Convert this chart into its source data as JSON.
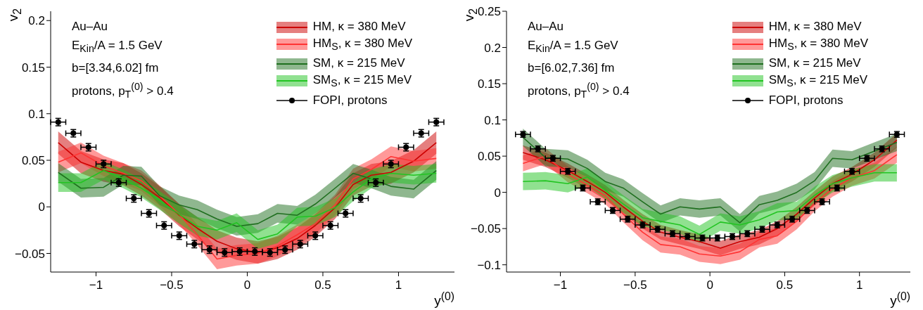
{
  "chart_data": [
    {
      "type": "line",
      "xlabel": "y$^{(0)}$",
      "ylabel": "v$_{2}$",
      "xlim": [
        -1.3,
        1.37
      ],
      "xticks": [
        -1,
        -0.5,
        0,
        0.5,
        1
      ],
      "ylim": [
        -0.07,
        0.21
      ],
      "yticks": [
        -0.05,
        0,
        0.05,
        0.1,
        0.15,
        0.2
      ],
      "legend": "top right",
      "line_style": "solid",
      "annotations": [
        "Au–Au",
        "E$_{Kin}$/A = 1.5 GeV",
        "b=[3.34,6.02] fm",
        "protons, p$_{T}$$^{(0)}$ > 0.4"
      ],
      "x": [
        -1.25,
        -1.1,
        -0.95,
        -0.82,
        -0.7,
        -0.58,
        -0.45,
        -0.33,
        -0.2,
        -0.07,
        0.07,
        0.2,
        0.33,
        0.45,
        0.58,
        0.7,
        0.82,
        0.95,
        1.1,
        1.25
      ],
      "series": [
        {
          "name": "HM, κ = 380 MeV",
          "color": "#cc0000",
          "values": [
            0.069,
            0.048,
            0.039,
            0.035,
            0.024,
            0.01,
            -0.009,
            -0.023,
            -0.037,
            -0.045,
            -0.049,
            -0.044,
            -0.034,
            -0.02,
            -0.001,
            0.024,
            0.034,
            0.037,
            0.049,
            0.069
          ],
          "lower": [
            0.057,
            0.036,
            0.027,
            0.023,
            0.012,
            -0.002,
            -0.021,
            -0.035,
            -0.049,
            -0.057,
            -0.061,
            -0.056,
            -0.046,
            -0.032,
            -0.013,
            0.012,
            0.022,
            0.025,
            0.037,
            0.057
          ],
          "upper": [
            0.081,
            0.06,
            0.051,
            0.047,
            0.036,
            0.022,
            0.003,
            -0.011,
            -0.025,
            -0.033,
            -0.037,
            -0.032,
            -0.022,
            -0.008,
            0.011,
            0.036,
            0.046,
            0.049,
            0.061,
            0.081
          ]
        },
        {
          "name": "HM$_{S}$, κ = 380 MeV",
          "color": "#ff3333",
          "values": [
            0.048,
            0.058,
            0.044,
            0.036,
            0.028,
            0.012,
            -0.008,
            -0.03,
            -0.056,
            -0.052,
            -0.05,
            -0.042,
            -0.03,
            -0.018,
            0.002,
            0.03,
            0.04,
            0.054,
            0.049,
            0.052
          ],
          "lower": [
            0.037,
            0.047,
            0.033,
            0.025,
            0.017,
            0.001,
            -0.019,
            -0.041,
            -0.067,
            -0.063,
            -0.061,
            -0.053,
            -0.041,
            -0.029,
            -0.009,
            0.019,
            0.029,
            0.043,
            0.038,
            0.041
          ],
          "upper": [
            0.059,
            0.069,
            0.055,
            0.047,
            0.039,
            0.023,
            0.003,
            -0.019,
            -0.045,
            -0.041,
            -0.039,
            -0.031,
            -0.019,
            -0.007,
            0.013,
            0.041,
            0.051,
            0.065,
            0.06,
            0.063
          ]
        },
        {
          "name": "SM, κ = 215 MeV",
          "color": "#1f6f1f",
          "values": [
            0.037,
            0.02,
            0.021,
            0.034,
            0.033,
            0.012,
            0.002,
            -0.003,
            -0.013,
            -0.021,
            -0.018,
            -0.007,
            -0.009,
            0.003,
            0.02,
            0.036,
            0.03,
            0.022,
            0.019,
            0.039
          ],
          "lower": [
            0.027,
            0.01,
            0.011,
            0.024,
            0.023,
            0.002,
            -0.008,
            -0.013,
            -0.023,
            -0.031,
            -0.028,
            -0.017,
            -0.019,
            -0.007,
            0.01,
            0.026,
            0.02,
            0.012,
            0.009,
            0.029
          ],
          "upper": [
            0.047,
            0.03,
            0.031,
            0.044,
            0.043,
            0.022,
            0.012,
            0.007,
            -0.003,
            -0.011,
            -0.008,
            0.003,
            0.001,
            0.013,
            0.03,
            0.046,
            0.04,
            0.032,
            0.029,
            0.049
          ]
        },
        {
          "name": "SM$_{S}$, κ = 215 MeV",
          "color": "#22c422",
          "values": [
            0.026,
            0.026,
            0.039,
            0.03,
            0.02,
            0.007,
            -0.008,
            -0.021,
            -0.025,
            -0.017,
            -0.035,
            -0.029,
            -0.011,
            -0.01,
            -0.001,
            0.016,
            0.03,
            0.036,
            0.034,
            0.036
          ],
          "lower": [
            0.016,
            0.016,
            0.029,
            0.02,
            0.01,
            -0.003,
            -0.018,
            -0.031,
            -0.035,
            -0.027,
            -0.045,
            -0.039,
            -0.021,
            -0.02,
            -0.011,
            0.006,
            0.02,
            0.026,
            0.024,
            0.026
          ],
          "upper": [
            0.036,
            0.036,
            0.049,
            0.04,
            0.03,
            0.017,
            0.002,
            -0.011,
            -0.015,
            -0.007,
            -0.025,
            -0.019,
            -0.001,
            0.0,
            0.009,
            0.026,
            0.04,
            0.046,
            0.044,
            0.046
          ]
        },
        {
          "type": "scatter",
          "name": "FOPI, protons",
          "color": "#000000",
          "x": [
            -1.25,
            -1.15,
            -1.05,
            -0.95,
            -0.85,
            -0.75,
            -0.65,
            -0.55,
            -0.45,
            -0.35,
            -0.25,
            -0.15,
            -0.05,
            0.05,
            0.15,
            0.25,
            0.35,
            0.45,
            0.55,
            0.65,
            0.75,
            0.85,
            0.95,
            1.05,
            1.15,
            1.25
          ],
          "marker": "circle",
          "values": [
            0.091,
            0.079,
            0.064,
            0.046,
            0.026,
            0.009,
            -0.007,
            -0.02,
            -0.031,
            -0.04,
            -0.046,
            -0.049,
            -0.048,
            -0.048,
            -0.049,
            -0.046,
            -0.04,
            -0.031,
            -0.02,
            -0.007,
            0.009,
            0.026,
            0.046,
            0.064,
            0.079,
            0.091
          ],
          "errors": [
            0.004,
            0.004,
            0.004,
            0.004,
            0.004,
            0.004,
            0.004,
            0.004,
            0.004,
            0.004,
            0.004,
            0.004,
            0.004,
            0.004,
            0.004,
            0.004,
            0.004,
            0.004,
            0.004,
            0.004,
            0.004,
            0.004,
            0.004,
            0.004,
            0.004,
            0.004
          ],
          "xerrors": [
            0.05,
            0.05,
            0.05,
            0.05,
            0.05,
            0.05,
            0.05,
            0.05,
            0.05,
            0.05,
            0.05,
            0.05,
            0.05,
            0.05,
            0.05,
            0.05,
            0.05,
            0.05,
            0.05,
            0.05,
            0.05,
            0.05,
            0.05,
            0.05,
            0.05,
            0.05
          ]
        }
      ]
    },
    {
      "type": "line",
      "xlabel": "y$^{(0)}$",
      "ylabel": "v$_{2}$",
      "xlim": [
        -1.36,
        1.34
      ],
      "xticks": [
        -1,
        -0.5,
        0,
        0.5,
        1
      ],
      "ylim": [
        -0.11,
        0.25
      ],
      "yticks": [
        -0.1,
        -0.05,
        0,
        0.05,
        0.1,
        0.15,
        0.2,
        0.25
      ],
      "legend": "top right",
      "line_style": "solid",
      "annotations": [
        "Au–Au",
        "E$_{Kin}$/A = 1.5 GeV",
        "b=[6.02,7.36] fm",
        "protons, p$_{T}$$^{(0)}$ > 0.4"
      ],
      "x": [
        -1.25,
        -1.1,
        -0.95,
        -0.82,
        -0.7,
        -0.58,
        -0.45,
        -0.33,
        -0.2,
        -0.07,
        0.07,
        0.2,
        0.33,
        0.45,
        0.58,
        0.7,
        0.82,
        0.95,
        1.1,
        1.25
      ],
      "series": [
        {
          "name": "HM, κ = 380 MeV",
          "color": "#cc0000",
          "values": [
            0.055,
            0.045,
            0.03,
            0.015,
            0.0,
            -0.02,
            -0.04,
            -0.055,
            -0.062,
            -0.068,
            -0.077,
            -0.068,
            -0.062,
            -0.05,
            -0.03,
            -0.008,
            0.012,
            0.025,
            0.045,
            0.072
          ],
          "lower": [
            0.045,
            0.035,
            0.02,
            0.005,
            -0.01,
            -0.03,
            -0.05,
            -0.065,
            -0.072,
            -0.078,
            -0.087,
            -0.078,
            -0.072,
            -0.06,
            -0.04,
            -0.018,
            0.002,
            0.015,
            0.035,
            0.062
          ],
          "upper": [
            0.065,
            0.055,
            0.04,
            0.025,
            0.01,
            -0.01,
            -0.03,
            -0.045,
            -0.052,
            -0.058,
            -0.067,
            -0.058,
            -0.052,
            -0.04,
            -0.02,
            0.002,
            0.022,
            0.035,
            0.055,
            0.082
          ]
        },
        {
          "name": "HM$_{S}$, κ = 380 MeV",
          "color": "#ff3333",
          "values": [
            0.04,
            0.05,
            0.025,
            0.01,
            -0.005,
            -0.03,
            -0.055,
            -0.072,
            -0.075,
            -0.085,
            -0.088,
            -0.082,
            -0.065,
            -0.06,
            -0.04,
            -0.015,
            0.005,
            0.02,
            0.03,
            0.052
          ],
          "lower": [
            0.029,
            0.039,
            0.014,
            -0.001,
            -0.016,
            -0.041,
            -0.066,
            -0.083,
            -0.086,
            -0.096,
            -0.099,
            -0.093,
            -0.076,
            -0.071,
            -0.051,
            -0.026,
            -0.006,
            0.009,
            0.019,
            0.041
          ],
          "upper": [
            0.051,
            0.061,
            0.036,
            0.021,
            0.006,
            -0.019,
            -0.044,
            -0.061,
            -0.064,
            -0.074,
            -0.077,
            -0.071,
            -0.054,
            -0.049,
            -0.029,
            -0.004,
            0.016,
            0.031,
            0.041,
            0.063
          ]
        },
        {
          "name": "SM, κ = 215 MeV",
          "color": "#1f6f1f",
          "values": [
            0.076,
            0.048,
            0.046,
            0.033,
            0.015,
            0.006,
            -0.013,
            -0.03,
            -0.02,
            -0.023,
            -0.02,
            -0.042,
            -0.017,
            -0.011,
            0.0,
            0.016,
            0.047,
            0.045,
            0.057,
            0.069
          ],
          "lower": [
            0.064,
            0.036,
            0.034,
            0.021,
            0.003,
            -0.006,
            -0.025,
            -0.042,
            -0.032,
            -0.035,
            -0.032,
            -0.054,
            -0.029,
            -0.023,
            -0.012,
            0.004,
            0.035,
            0.033,
            0.045,
            0.057
          ],
          "upper": [
            0.088,
            0.06,
            0.058,
            0.045,
            0.027,
            0.018,
            -0.001,
            -0.018,
            -0.008,
            -0.011,
            -0.008,
            -0.03,
            -0.005,
            0.001,
            0.012,
            0.028,
            0.059,
            0.057,
            0.069,
            0.081
          ]
        },
        {
          "name": "SM$_{S}$, κ = 215 MeV",
          "color": "#22c422",
          "values": [
            0.015,
            0.016,
            0.012,
            0.021,
            0.003,
            -0.016,
            -0.035,
            -0.04,
            -0.045,
            -0.058,
            -0.041,
            -0.045,
            -0.038,
            -0.027,
            -0.025,
            -0.004,
            0.012,
            0.02,
            0.027,
            0.027
          ],
          "lower": [
            0.003,
            0.004,
            0.0,
            0.009,
            -0.009,
            -0.028,
            -0.047,
            -0.052,
            -0.057,
            -0.07,
            -0.053,
            -0.057,
            -0.05,
            -0.039,
            -0.037,
            -0.016,
            0.0,
            0.008,
            0.015,
            0.015
          ],
          "upper": [
            0.027,
            0.028,
            0.024,
            0.033,
            0.015,
            -0.004,
            -0.023,
            -0.028,
            -0.033,
            -0.046,
            -0.029,
            -0.033,
            -0.026,
            -0.015,
            -0.013,
            0.008,
            0.024,
            0.032,
            0.039,
            0.039
          ]
        },
        {
          "type": "scatter",
          "name": "FOPI, protons",
          "color": "#000000",
          "x": [
            -1.25,
            -1.15,
            -1.05,
            -0.95,
            -0.85,
            -0.75,
            -0.65,
            -0.55,
            -0.45,
            -0.35,
            -0.25,
            -0.15,
            -0.05,
            0.05,
            0.15,
            0.25,
            0.35,
            0.45,
            0.55,
            0.65,
            0.75,
            0.85,
            0.95,
            1.05,
            1.15,
            1.25
          ],
          "marker": "circle",
          "values": [
            0.08,
            0.06,
            0.047,
            0.029,
            0.006,
            -0.013,
            -0.025,
            -0.037,
            -0.045,
            -0.051,
            -0.057,
            -0.061,
            -0.063,
            -0.063,
            -0.061,
            -0.057,
            -0.051,
            -0.045,
            -0.037,
            -0.025,
            -0.013,
            0.006,
            0.029,
            0.047,
            0.06,
            0.08
          ],
          "errors": [
            0.004,
            0.004,
            0.004,
            0.004,
            0.004,
            0.004,
            0.004,
            0.004,
            0.004,
            0.004,
            0.004,
            0.004,
            0.004,
            0.004,
            0.004,
            0.004,
            0.004,
            0.004,
            0.004,
            0.004,
            0.004,
            0.004,
            0.004,
            0.004,
            0.004,
            0.004
          ],
          "xerrors": [
            0.05,
            0.05,
            0.05,
            0.05,
            0.05,
            0.05,
            0.05,
            0.05,
            0.05,
            0.05,
            0.05,
            0.05,
            0.05,
            0.05,
            0.05,
            0.05,
            0.05,
            0.05,
            0.05,
            0.05,
            0.05,
            0.05,
            0.05,
            0.05,
            0.05,
            0.05
          ]
        }
      ]
    }
  ]
}
